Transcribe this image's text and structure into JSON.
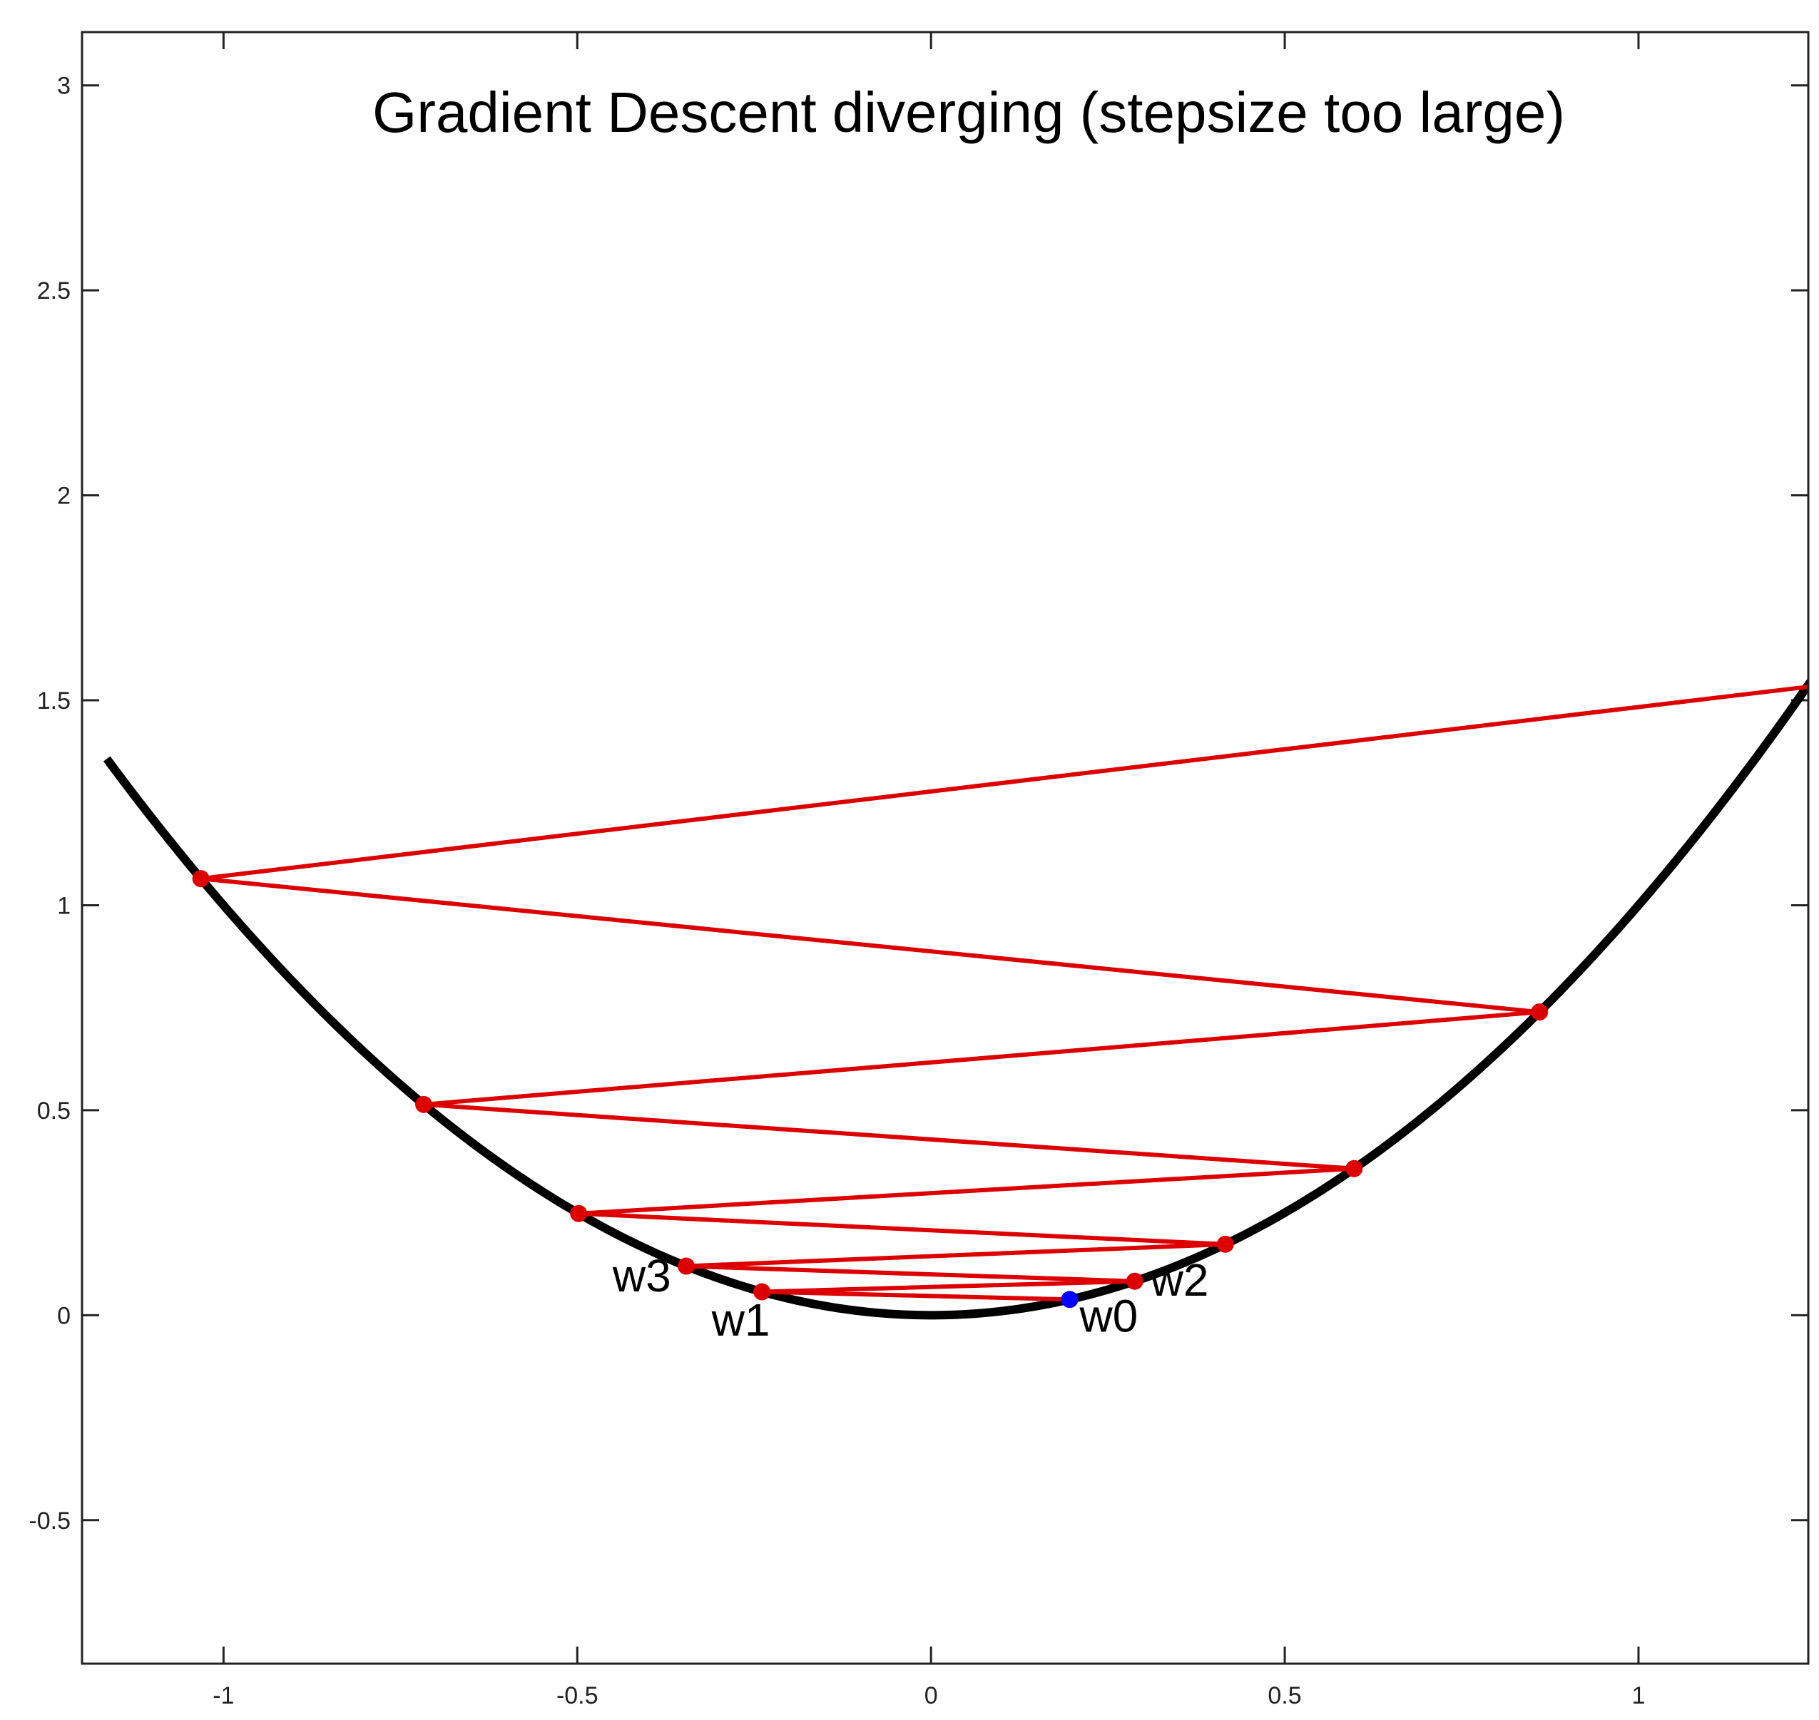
{
  "chart_data": {
    "type": "line",
    "title": "Gradient Descent diverging (stepsize too large)",
    "xlabel": "",
    "ylabel": "",
    "xlim": [
      -1.2,
      1.24
    ],
    "ylim": [
      -0.85,
      3.13
    ],
    "xticks": [
      -1,
      -0.5,
      0,
      0.5,
      1
    ],
    "xtick_labels": [
      "-1",
      "-0.5",
      "0",
      "0.5",
      "1"
    ],
    "yticks": [
      -0.5,
      0,
      0.5,
      1,
      1.5,
      2,
      2.5,
      3
    ],
    "ytick_labels": [
      "-0.5",
      "0",
      "0.5",
      "1",
      "1.5",
      "2",
      "2.5",
      "3"
    ],
    "grid": false,
    "function": {
      "formula": "w^2",
      "x_range": [
        -1.165,
        1.255
      ],
      "color": "#000000"
    },
    "iterates": {
      "x": [
        0.196,
        -0.239,
        0.288,
        -0.346,
        0.416,
        -0.498,
        0.598,
        -0.717,
        0.86,
        -1.032,
        1.238
      ],
      "y": [
        0.0384,
        0.0571,
        0.0829,
        0.1197,
        0.1731,
        0.248,
        0.3576,
        0.5141,
        0.7396,
        1.065,
        1.5326
      ],
      "line_color": "#dd0000",
      "start_color": "#0000ff"
    },
    "annotations": [
      {
        "text": "w0",
        "x": 0.21,
        "y": -0.04
      },
      {
        "text": "w1",
        "x": -0.31,
        "y": -0.05
      },
      {
        "text": "w2",
        "x": 0.31,
        "y": 0.048
      },
      {
        "text": "w3",
        "x": -0.45,
        "y": 0.058
      }
    ]
  }
}
